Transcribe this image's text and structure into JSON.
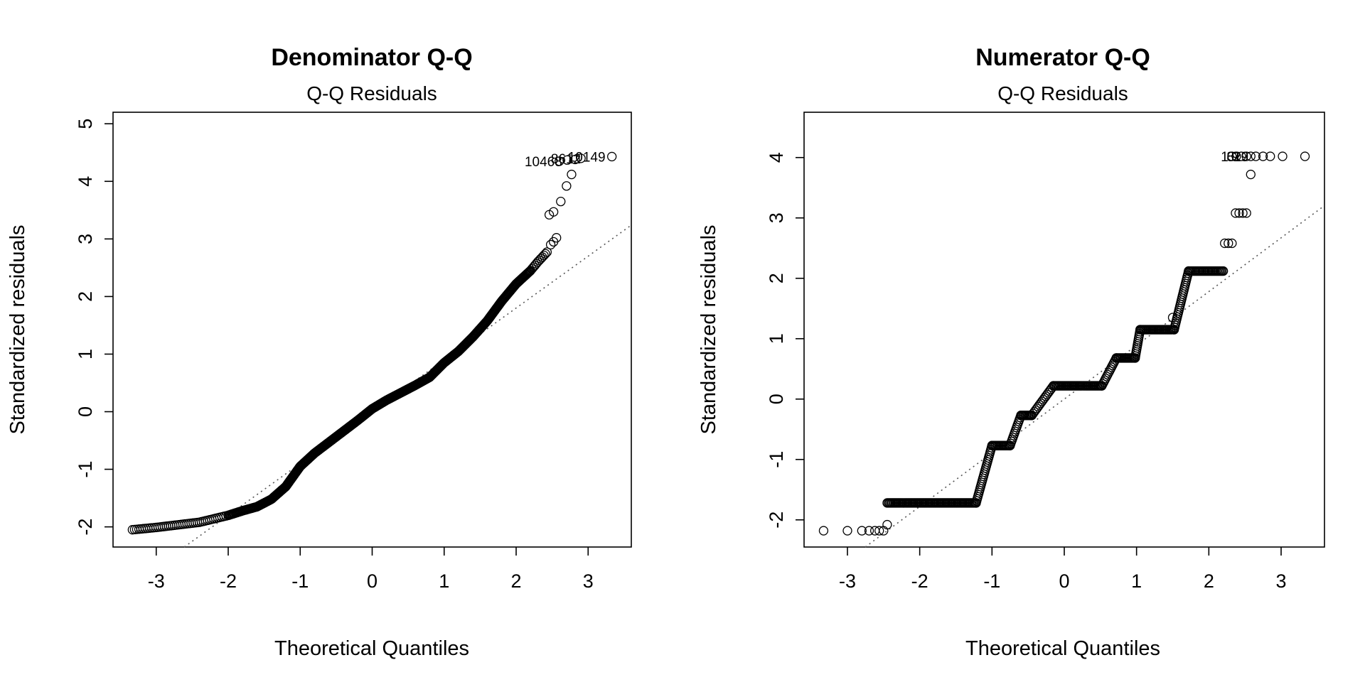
{
  "chart_data": [
    {
      "type": "scatter",
      "title": "Denominator Q-Q",
      "subtitle": "Q-Q Residuals",
      "xlabel": "Theoretical Quantiles",
      "ylabel": "Standardized residuals",
      "xlim": [
        -3.6,
        3.6
      ],
      "ylim": [
        -2.35,
        5.2
      ],
      "xticks": [
        "-3",
        "-2",
        "-1",
        "0",
        "1",
        "2",
        "3"
      ],
      "yticks": [
        "-2",
        "-1",
        "0",
        "1",
        "2",
        "3",
        "4",
        "5"
      ],
      "reference_line": {
        "style": "dotted",
        "intercept": 0.0,
        "slope": 0.9
      },
      "labeled_points": [
        "10468",
        "8612",
        "10149"
      ],
      "curve": [
        [
          -3.33,
          -2.05
        ],
        [
          -3.0,
          -2.01
        ],
        [
          -2.8,
          -1.98
        ],
        [
          -2.6,
          -1.95
        ],
        [
          -2.4,
          -1.92
        ],
        [
          -2.2,
          -1.86
        ],
        [
          -2.0,
          -1.8
        ],
        [
          -1.8,
          -1.72
        ],
        [
          -1.6,
          -1.65
        ],
        [
          -1.4,
          -1.52
        ],
        [
          -1.2,
          -1.3
        ],
        [
          -1.0,
          -0.95
        ],
        [
          -0.8,
          -0.72
        ],
        [
          -0.6,
          -0.53
        ],
        [
          -0.4,
          -0.34
        ],
        [
          -0.2,
          -0.15
        ],
        [
          0.0,
          0.05
        ],
        [
          0.2,
          0.2
        ],
        [
          0.4,
          0.33
        ],
        [
          0.6,
          0.46
        ],
        [
          0.8,
          0.6
        ],
        [
          1.0,
          0.85
        ],
        [
          1.2,
          1.05
        ],
        [
          1.4,
          1.3
        ],
        [
          1.6,
          1.58
        ],
        [
          1.8,
          1.92
        ],
        [
          2.0,
          2.22
        ],
        [
          2.2,
          2.45
        ],
        [
          2.3,
          2.6
        ],
        [
          2.45,
          2.8
        ]
      ],
      "tail_points": [
        [
          2.48,
          2.9
        ],
        [
          2.52,
          2.95
        ],
        [
          2.56,
          3.02
        ],
        [
          2.46,
          3.42
        ],
        [
          2.52,
          3.47
        ],
        [
          2.62,
          3.65
        ],
        [
          2.7,
          3.92
        ],
        [
          2.77,
          4.12
        ],
        [
          2.6,
          4.35
        ],
        [
          2.71,
          4.37
        ],
        [
          2.82,
          4.38
        ],
        [
          2.9,
          4.4
        ],
        [
          3.33,
          4.43
        ]
      ],
      "annotations": [
        {
          "text": "10468",
          "x": 2.64,
          "y": 4.35,
          "anchor": "end"
        },
        {
          "text": "8612",
          "x": 2.9,
          "y": 4.4,
          "anchor": "end"
        },
        {
          "text": "10149",
          "x": 3.24,
          "y": 4.43,
          "anchor": "end"
        }
      ]
    },
    {
      "type": "scatter",
      "title": "Numerator Q-Q",
      "subtitle": "Q-Q Residuals",
      "xlabel": "Theoretical Quantiles",
      "ylabel": "Standardized residuals",
      "xlim": [
        -3.6,
        3.6
      ],
      "ylim": [
        -2.45,
        4.75
      ],
      "xticks": [
        "-3",
        "-2",
        "-1",
        "0",
        "1",
        "2",
        "3"
      ],
      "yticks": [
        "-2",
        "-1",
        "0",
        "1",
        "2",
        "3",
        "4"
      ],
      "reference_line": {
        "style": "dotted",
        "intercept": 0.0,
        "slope": 0.89
      },
      "labeled_points": [
        "1",
        "8",
        "9",
        "29"
      ],
      "steps": [
        {
          "y": -1.72,
          "x0": -2.45,
          "x1": -1.22
        },
        {
          "y": -0.77,
          "x0": -1.0,
          "x1": -0.75
        },
        {
          "y": -0.27,
          "x0": -0.6,
          "x1": -0.45
        },
        {
          "y": 0.22,
          "x0": -0.15,
          "x1": 0.52
        },
        {
          "y": 0.68,
          "x0": 0.72,
          "x1": 0.98
        },
        {
          "y": 1.15,
          "x0": 1.05,
          "x1": 1.52
        },
        {
          "y": 2.12,
          "x0": 1.72,
          "x1": 2.2
        }
      ],
      "risers": [
        {
          "x0": -1.22,
          "y0": -1.72,
          "x1": -1.0,
          "y1": -0.77
        },
        {
          "x0": -0.75,
          "y0": -0.77,
          "x1": -0.6,
          "y1": -0.27
        },
        {
          "x0": -0.45,
          "y0": -0.27,
          "x1": -0.15,
          "y1": 0.22
        },
        {
          "x0": 0.52,
          "y0": 0.22,
          "x1": 0.72,
          "y1": 0.68
        },
        {
          "x0": 0.98,
          "y0": 0.68,
          "x1": 1.05,
          "y1": 1.15
        },
        {
          "x0": 1.52,
          "y0": 1.15,
          "x1": 1.72,
          "y1": 2.12
        }
      ],
      "single_points": [
        [
          -3.33,
          -2.18
        ],
        [
          -3.0,
          -2.18
        ],
        [
          -2.8,
          -2.18
        ],
        [
          -2.7,
          -2.18
        ],
        [
          -2.62,
          -2.18
        ],
        [
          -2.56,
          -2.18
        ],
        [
          -2.5,
          -2.18
        ],
        [
          -2.45,
          -2.08
        ],
        [
          1.5,
          1.35
        ],
        [
          2.22,
          2.58
        ],
        [
          2.27,
          2.58
        ],
        [
          2.32,
          2.58
        ],
        [
          2.37,
          3.08
        ],
        [
          2.42,
          3.08
        ],
        [
          2.47,
          3.08
        ],
        [
          2.52,
          3.08
        ],
        [
          2.58,
          3.72
        ],
        [
          2.32,
          4.02
        ],
        [
          2.38,
          4.02
        ],
        [
          2.45,
          4.02
        ],
        [
          2.52,
          4.02
        ],
        [
          2.58,
          4.02
        ],
        [
          2.65,
          4.02
        ],
        [
          2.75,
          4.02
        ],
        [
          2.85,
          4.02
        ],
        [
          3.02,
          4.02
        ],
        [
          3.33,
          4.02
        ]
      ],
      "annotations": [
        {
          "text": "1",
          "x": 2.27,
          "y": 4.02,
          "anchor": "end"
        },
        {
          "text": "8",
          "x": 2.35,
          "y": 4.02,
          "anchor": "end"
        },
        {
          "text": "9",
          "x": 2.42,
          "y": 4.02,
          "anchor": "end"
        },
        {
          "text": "29",
          "x": 2.55,
          "y": 4.02,
          "anchor": "end"
        }
      ]
    }
  ]
}
